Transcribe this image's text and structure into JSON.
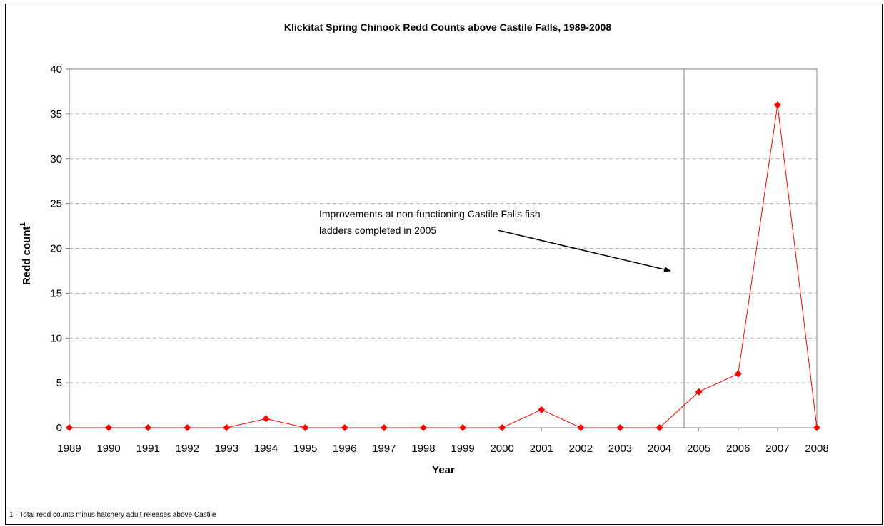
{
  "chart_data": {
    "type": "line",
    "title": "Klickitat Spring Chinook Redd Counts above Castile Falls, 1989-2008",
    "xlabel": "Year",
    "ylabel": "Redd count",
    "ylabel_superscript": "1",
    "ylim": [
      0,
      40
    ],
    "y_ticks": [
      "0",
      "5",
      "10",
      "15",
      "20",
      "25",
      "30",
      "35",
      "40"
    ],
    "grid": "horizontal dashed",
    "legend": "none",
    "categories": [
      "1989",
      "1990",
      "1991",
      "1992",
      "1993",
      "1994",
      "1995",
      "1996",
      "1997",
      "1998",
      "1999",
      "2000",
      "2001",
      "2002",
      "2003",
      "2004",
      "2005",
      "2006",
      "2007",
      "2008"
    ],
    "series": [
      {
        "values": [
          0,
          0,
          0,
          0,
          0,
          1,
          0,
          0,
          0,
          0,
          0,
          0,
          2,
          0,
          0,
          0,
          4,
          6,
          36,
          0
        ],
        "color": "#ff0000",
        "marker": "diamond"
      }
    ],
    "annotation": {
      "lines": [
        "Improvements at non-functioning Castile Falls fish",
        "ladders completed in 2005"
      ],
      "arrow_target_year_between": [
        "2004",
        "2005"
      ]
    },
    "footnote": "1 - Total redd counts minus hatchery adult releases above Castile"
  }
}
